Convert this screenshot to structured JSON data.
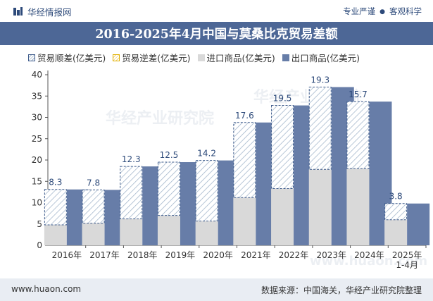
{
  "header": {
    "brand": "华经情报网",
    "tag1": "专业严谨",
    "separator": "●",
    "tag2": "客观科学"
  },
  "title": "2016-2025年4月中国与莫桑比克贸易差额",
  "legend": {
    "surplus": "贸易顺差(亿美元)",
    "deficit": "贸易逆差(亿美元)",
    "import": "进口商品(亿美元)",
    "export": "出口商品(亿美元)"
  },
  "colors": {
    "title_bg": "#4d6796",
    "export": "#677da8",
    "import": "#d9d9d9",
    "surplus_border": "#3f5c8c",
    "surplus_hatch": "#9fb3c9",
    "deficit_border": "#e0b000",
    "footer_bg": "#e9edf3"
  },
  "watermark": "华经产业研究院",
  "watermark_url": "www.huaon.com",
  "footer": {
    "url": "www.huaon.com",
    "source": "数据来源：中国海关，华经产业研究院整理"
  },
  "chart_data": {
    "type": "bar",
    "categories": [
      "2016年",
      "2017年",
      "2018年",
      "2019年",
      "2020年",
      "2021年",
      "2022年",
      "2023年",
      "2024年",
      "2025年\n1-4月"
    ],
    "series": [
      {
        "name": "进口商品(亿美元)",
        "values": [
          4.8,
          5.2,
          6.2,
          7.0,
          5.7,
          11.2,
          13.3,
          17.8,
          18.0,
          6.0
        ]
      },
      {
        "name": "出口商品(亿美元)",
        "values": [
          13.1,
          13.0,
          18.5,
          19.5,
          19.9,
          28.8,
          32.8,
          37.1,
          33.7,
          9.8
        ]
      },
      {
        "name": "贸易顺差(亿美元)",
        "values": [
          8.3,
          7.8,
          12.3,
          12.5,
          14.2,
          17.6,
          19.5,
          19.3,
          15.7,
          3.8
        ]
      },
      {
        "name": "贸易逆差(亿美元)",
        "values": [
          null,
          null,
          null,
          null,
          null,
          null,
          null,
          null,
          null,
          null
        ]
      }
    ],
    "ylim": [
      0,
      40
    ],
    "yticks": [
      0,
      5,
      10,
      15,
      20,
      25,
      30,
      35,
      40
    ],
    "grid": false,
    "legend_position": "top-left"
  }
}
